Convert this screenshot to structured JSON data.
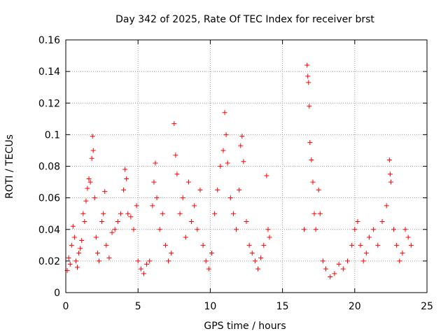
{
  "chart_data": {
    "type": "scatter",
    "title": "Day 342 of 2025, Rate Of TEC Index for receiver brst",
    "xlabel": "GPS time / hours",
    "ylabel": "ROTI / TECUs",
    "xlim": [
      0,
      25
    ],
    "ylim": [
      0,
      0.16
    ],
    "xticks": [
      0,
      5,
      10,
      15,
      20,
      25
    ],
    "yticks": [
      0,
      0.02,
      0.04,
      0.06,
      0.08,
      0.1,
      0.12,
      0.14,
      0.16
    ],
    "xtick_labels": [
      "0",
      "5",
      "10",
      "15",
      "20",
      "25"
    ],
    "ytick_labels": [
      "0",
      "0.02",
      "0.04",
      "0.06",
      "0.08",
      "0.1",
      "0.12",
      "0.14",
      "0.16"
    ],
    "grid": true,
    "legend": false,
    "marker": "plus",
    "color": "#ff0000",
    "series": [
      {
        "points": [
          [
            0.1,
            0.014
          ],
          [
            0.2,
            0.022
          ],
          [
            0.3,
            0.018
          ],
          [
            0.4,
            0.03
          ],
          [
            0.5,
            0.042
          ],
          [
            0.6,
            0.035
          ],
          [
            0.7,
            0.02
          ],
          [
            0.8,
            0.016
          ],
          [
            0.9,
            0.025
          ],
          [
            1.0,
            0.028
          ],
          [
            1.1,
            0.033
          ],
          [
            1.2,
            0.05
          ],
          [
            1.3,
            0.045
          ],
          [
            1.4,
            0.058
          ],
          [
            1.5,
            0.066
          ],
          [
            1.6,
            0.072
          ],
          [
            1.7,
            0.07
          ],
          [
            1.8,
            0.085
          ],
          [
            1.85,
            0.099
          ],
          [
            1.9,
            0.09
          ],
          [
            2.0,
            0.06
          ],
          [
            2.1,
            0.035
          ],
          [
            2.2,
            0.025
          ],
          [
            2.3,
            0.02
          ],
          [
            2.5,
            0.045
          ],
          [
            2.6,
            0.05
          ],
          [
            2.7,
            0.064
          ],
          [
            2.8,
            0.03
          ],
          [
            3.0,
            0.022
          ],
          [
            3.2,
            0.038
          ],
          [
            3.4,
            0.04
          ],
          [
            3.6,
            0.045
          ],
          [
            3.8,
            0.05
          ],
          [
            4.0,
            0.065
          ],
          [
            4.1,
            0.078
          ],
          [
            4.2,
            0.072
          ],
          [
            4.3,
            0.05
          ],
          [
            4.5,
            0.048
          ],
          [
            4.7,
            0.04
          ],
          [
            4.9,
            0.055
          ],
          [
            5.0,
            0.02
          ],
          [
            5.2,
            0.015
          ],
          [
            5.4,
            0.012
          ],
          [
            5.6,
            0.018
          ],
          [
            5.8,
            0.02
          ],
          [
            6.0,
            0.055
          ],
          [
            6.1,
            0.07
          ],
          [
            6.2,
            0.082
          ],
          [
            6.3,
            0.06
          ],
          [
            6.5,
            0.04
          ],
          [
            6.7,
            0.05
          ],
          [
            6.9,
            0.03
          ],
          [
            7.1,
            0.02
          ],
          [
            7.3,
            0.025
          ],
          [
            7.5,
            0.107
          ],
          [
            7.6,
            0.087
          ],
          [
            7.7,
            0.075
          ],
          [
            7.9,
            0.05
          ],
          [
            8.1,
            0.06
          ],
          [
            8.3,
            0.035
          ],
          [
            8.5,
            0.07
          ],
          [
            8.7,
            0.045
          ],
          [
            8.9,
            0.055
          ],
          [
            9.1,
            0.04
          ],
          [
            9.3,
            0.065
          ],
          [
            9.5,
            0.03
          ],
          [
            9.7,
            0.02
          ],
          [
            9.9,
            0.015
          ],
          [
            10.1,
            0.025
          ],
          [
            10.3,
            0.05
          ],
          [
            10.5,
            0.065
          ],
          [
            10.7,
            0.08
          ],
          [
            10.9,
            0.09
          ],
          [
            11.0,
            0.114
          ],
          [
            11.1,
            0.1
          ],
          [
            11.2,
            0.082
          ],
          [
            11.4,
            0.06
          ],
          [
            11.6,
            0.05
          ],
          [
            11.8,
            0.04
          ],
          [
            12.0,
            0.065
          ],
          [
            12.1,
            0.093
          ],
          [
            12.2,
            0.099
          ],
          [
            12.3,
            0.083
          ],
          [
            12.5,
            0.045
          ],
          [
            12.7,
            0.03
          ],
          [
            12.9,
            0.025
          ],
          [
            13.1,
            0.02
          ],
          [
            13.3,
            0.015
          ],
          [
            13.5,
            0.022
          ],
          [
            13.7,
            0.03
          ],
          [
            13.9,
            0.074
          ],
          [
            14.0,
            0.04
          ],
          [
            14.1,
            0.035
          ],
          [
            16.5,
            0.04
          ],
          [
            16.7,
            0.144
          ],
          [
            16.75,
            0.137
          ],
          [
            16.8,
            0.133
          ],
          [
            16.85,
            0.118
          ],
          [
            16.9,
            0.095
          ],
          [
            17.0,
            0.084
          ],
          [
            17.1,
            0.07
          ],
          [
            17.2,
            0.05
          ],
          [
            17.3,
            0.04
          ],
          [
            17.5,
            0.065
          ],
          [
            17.6,
            0.05
          ],
          [
            17.8,
            0.02
          ],
          [
            18.0,
            0.015
          ],
          [
            18.3,
            0.01
          ],
          [
            18.6,
            0.012
          ],
          [
            18.9,
            0.018
          ],
          [
            19.2,
            0.015
          ],
          [
            19.5,
            0.02
          ],
          [
            19.8,
            0.03
          ],
          [
            20.0,
            0.04
          ],
          [
            20.2,
            0.045
          ],
          [
            20.4,
            0.03
          ],
          [
            20.6,
            0.02
          ],
          [
            20.8,
            0.025
          ],
          [
            21.0,
            0.035
          ],
          [
            21.3,
            0.04
          ],
          [
            21.6,
            0.03
          ],
          [
            21.9,
            0.045
          ],
          [
            22.2,
            0.055
          ],
          [
            22.4,
            0.084
          ],
          [
            22.45,
            0.075
          ],
          [
            22.5,
            0.07
          ],
          [
            22.7,
            0.04
          ],
          [
            22.9,
            0.03
          ],
          [
            23.1,
            0.02
          ],
          [
            23.3,
            0.025
          ],
          [
            23.5,
            0.04
          ],
          [
            23.7,
            0.035
          ],
          [
            23.9,
            0.03
          ]
        ]
      }
    ]
  }
}
